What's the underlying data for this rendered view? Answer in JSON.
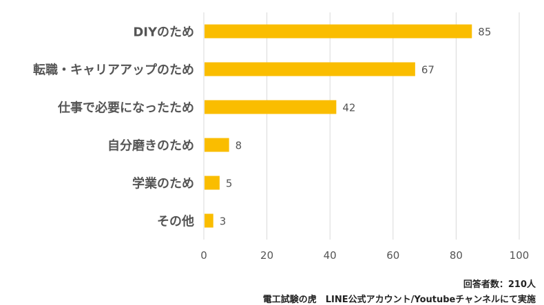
{
  "chart_data": {
    "type": "bar",
    "orientation": "horizontal",
    "categories": [
      "DIYのため",
      "転職・キャリアアップのため",
      "仕事で必要になったため",
      "自分磨きのため",
      "学業のため",
      "その他"
    ],
    "values": [
      85,
      67,
      42,
      8,
      5,
      3
    ],
    "xlim": [
      0,
      100
    ],
    "xticks": [
      0,
      20,
      40,
      60,
      80,
      100
    ],
    "grid": "vertical",
    "legend": "none",
    "bar_color": "#FABD00",
    "grid_color": "#d9d9d9"
  },
  "notes": {
    "respondents": "回答者数：210人",
    "source": "電工試験の虎　LINE公式アカウント/Youtubeチャンネルにて実施"
  }
}
